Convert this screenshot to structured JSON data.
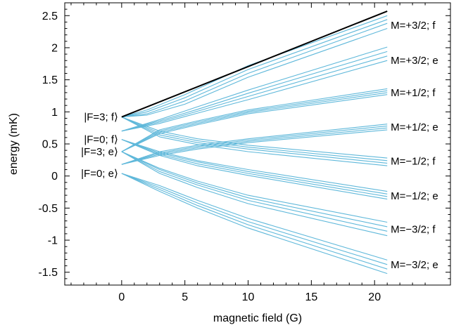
{
  "chart_data": {
    "type": "line",
    "title": "",
    "xlabel": "magnetic field (G)",
    "ylabel": "energy (mK)",
    "xlim": [
      -4.5,
      26
    ],
    "ylim": [
      -1.7,
      2.7
    ],
    "x_ticks": [
      0,
      5,
      10,
      15,
      20
    ],
    "x_tick_labels": [
      "0",
      "5",
      "10",
      "15",
      "20"
    ],
    "y_ticks": [
      2.5,
      2,
      1.5,
      1,
      0.5,
      0,
      -0.5,
      -1,
      -1.5
    ],
    "y_tick_labels": [
      "2.5",
      "2",
      "1.5",
      "1",
      "0.5",
      "0",
      "-0.5",
      "-1",
      "-1.5"
    ],
    "grid": false,
    "colors": {
      "stretched_state": "#000000",
      "levels": "#5fb8da"
    },
    "zero_field_labels": [
      {
        "text": "|F=3; f⟩",
        "y": 0.92
      },
      {
        "text": "|F=0; f⟩",
        "y": 0.57
      },
      {
        "text": "|F=3; e⟩",
        "y": 0.38
      },
      {
        "text": "|F=0; e⟩",
        "y": 0.04
      }
    ],
    "branch_labels": [
      {
        "text": "M=+3/2; f",
        "y": 2.35
      },
      {
        "text": "M=+3/2; e",
        "y": 1.8
      },
      {
        "text": "M=+1/2; f",
        "y": 1.3
      },
      {
        "text": "M=+1/2; e",
        "y": 0.76
      },
      {
        "text": "M=−1/2; f",
        "y": 0.23
      },
      {
        "text": "M=−1/2; e",
        "y": -0.31
      },
      {
        "text": "M=−3/2; f",
        "y": -0.83
      },
      {
        "text": "M=−3/2; e",
        "y": -1.38
      }
    ],
    "series": [
      {
        "x": [
          0,
          21
        ],
        "y": [
          0.92,
          2.57
        ],
        "highlight": true
      },
      {
        "x": [
          0,
          2,
          5,
          10,
          21
        ],
        "y": [
          0.92,
          1.03,
          1.27,
          1.72,
          2.5
        ]
      },
      {
        "x": [
          0,
          2,
          5,
          10,
          21
        ],
        "y": [
          0.92,
          1.0,
          1.22,
          1.66,
          2.44
        ]
      },
      {
        "x": [
          0,
          2,
          5,
          10,
          21
        ],
        "y": [
          0.92,
          0.97,
          1.17,
          1.6,
          2.38
        ]
      },
      {
        "x": [
          0,
          2,
          5,
          10,
          21
        ],
        "y": [
          0.92,
          0.95,
          1.12,
          1.54,
          2.3
        ]
      },
      {
        "x": [
          0,
          3,
          6,
          10,
          21
        ],
        "y": [
          0.7,
          0.88,
          1.08,
          1.34,
          2.01
        ]
      },
      {
        "x": [
          0,
          3,
          6,
          10,
          21
        ],
        "y": [
          0.7,
          0.86,
          1.04,
          1.29,
          1.94
        ]
      },
      {
        "x": [
          0,
          3,
          6,
          10,
          21
        ],
        "y": [
          0.7,
          0.84,
          1.01,
          1.24,
          1.87
        ]
      },
      {
        "x": [
          0,
          3,
          6,
          10,
          21
        ],
        "y": [
          0.7,
          0.82,
          0.98,
          1.19,
          1.8
        ]
      },
      {
        "x": [
          0,
          3,
          6,
          10,
          21
        ],
        "y": [
          0.38,
          0.72,
          0.86,
          1.03,
          1.36
        ]
      },
      {
        "x": [
          0,
          3,
          6,
          10,
          21
        ],
        "y": [
          0.38,
          0.7,
          0.84,
          1.01,
          1.33
        ]
      },
      {
        "x": [
          0,
          3,
          6,
          10,
          21
        ],
        "y": [
          0.38,
          0.68,
          0.82,
          0.99,
          1.3
        ]
      },
      {
        "x": [
          0,
          3,
          6,
          10,
          21
        ],
        "y": [
          0.38,
          0.66,
          0.8,
          0.97,
          1.27
        ]
      },
      {
        "x": [
          0,
          3,
          6,
          10,
          21
        ],
        "y": [
          0.18,
          0.38,
          0.48,
          0.58,
          0.81
        ]
      },
      {
        "x": [
          0,
          3,
          6,
          10,
          21
        ],
        "y": [
          0.18,
          0.36,
          0.46,
          0.56,
          0.78
        ]
      },
      {
        "x": [
          0,
          3,
          6,
          10,
          21
        ],
        "y": [
          0.18,
          0.34,
          0.44,
          0.54,
          0.75
        ]
      },
      {
        "x": [
          0,
          3,
          6,
          10,
          21
        ],
        "y": [
          0.18,
          0.32,
          0.42,
          0.52,
          0.72
        ]
      },
      {
        "x": [
          0,
          3,
          6,
          10,
          21
        ],
        "y": [
          0.92,
          0.7,
          0.58,
          0.48,
          0.28
        ]
      },
      {
        "x": [
          0,
          3,
          6,
          10,
          21
        ],
        "y": [
          0.92,
          0.67,
          0.55,
          0.45,
          0.24
        ]
      },
      {
        "x": [
          0,
          3,
          6,
          10,
          21
        ],
        "y": [
          0.92,
          0.64,
          0.52,
          0.42,
          0.2
        ]
      },
      {
        "x": [
          0,
          3,
          6,
          10,
          21
        ],
        "y": [
          0.92,
          0.61,
          0.49,
          0.38,
          0.16
        ]
      },
      {
        "x": [
          0,
          3,
          6,
          10,
          21
        ],
        "y": [
          0.57,
          0.38,
          0.24,
          0.1,
          -0.24
        ]
      },
      {
        "x": [
          0,
          3,
          6,
          10,
          21
        ],
        "y": [
          0.57,
          0.36,
          0.22,
          0.07,
          -0.28
        ]
      },
      {
        "x": [
          0,
          3,
          6,
          10,
          21
        ],
        "y": [
          0.57,
          0.34,
          0.19,
          0.04,
          -0.32
        ]
      },
      {
        "x": [
          0,
          3,
          6,
          10,
          21
        ],
        "y": [
          0.57,
          0.32,
          0.16,
          0.01,
          -0.36
        ]
      },
      {
        "x": [
          0,
          3,
          6,
          10,
          21
        ],
        "y": [
          0.38,
          0.12,
          -0.08,
          -0.3,
          -0.72
        ]
      },
      {
        "x": [
          0,
          3,
          6,
          10,
          21
        ],
        "y": [
          0.38,
          0.1,
          -0.11,
          -0.34,
          -0.79
        ]
      },
      {
        "x": [
          0,
          3,
          6,
          10,
          21
        ],
        "y": [
          0.38,
          0.07,
          -0.14,
          -0.38,
          -0.86
        ]
      },
      {
        "x": [
          0,
          3,
          6,
          10,
          21
        ],
        "y": [
          0.38,
          0.04,
          -0.18,
          -0.43,
          -0.93
        ]
      },
      {
        "x": [
          0,
          3,
          6,
          10,
          21
        ],
        "y": [
          0.04,
          -0.15,
          -0.38,
          -0.66,
          -1.31
        ]
      },
      {
        "x": [
          0,
          3,
          6,
          10,
          21
        ],
        "y": [
          0.04,
          -0.18,
          -0.42,
          -0.71,
          -1.38
        ]
      },
      {
        "x": [
          0,
          3,
          6,
          10,
          21
        ],
        "y": [
          0.04,
          -0.21,
          -0.46,
          -0.76,
          -1.45
        ]
      },
      {
        "x": [
          0,
          3,
          6,
          10,
          21
        ],
        "y": [
          0.04,
          -0.24,
          -0.5,
          -0.81,
          -1.52
        ]
      }
    ]
  }
}
